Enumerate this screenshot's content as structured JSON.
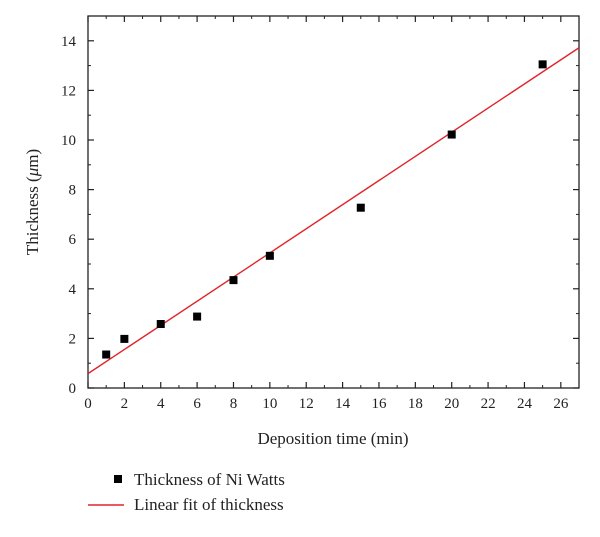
{
  "chart_data": {
    "type": "scatter",
    "title": "",
    "xlabel": "Deposition time (min)",
    "ylabel_prefix": "Thickness (",
    "ylabel_unit": "μ",
    "ylabel_suffix": "m)",
    "xlim": [
      0,
      27
    ],
    "ylim": [
      0,
      15
    ],
    "x_ticks": [
      0,
      2,
      4,
      6,
      8,
      10,
      12,
      14,
      16,
      18,
      20,
      22,
      24,
      26
    ],
    "y_ticks": [
      0,
      2,
      4,
      6,
      8,
      10,
      12,
      14
    ],
    "grid": false,
    "legend_position": "bottom-outside",
    "series": [
      {
        "name": "Thickness of Ni Watts",
        "kind": "scatter",
        "marker": "square",
        "color": "#000000",
        "x": [
          1,
          2,
          4,
          6,
          8,
          10,
          15,
          20,
          25
        ],
        "y": [
          1.35,
          1.98,
          2.58,
          2.88,
          4.35,
          5.33,
          7.27,
          10.22,
          13.05
        ]
      },
      {
        "name": "Linear fit of thickness",
        "kind": "line",
        "color": "#e0242a",
        "x": [
          0,
          27
        ],
        "y": [
          0.58,
          13.72
        ]
      }
    ]
  }
}
